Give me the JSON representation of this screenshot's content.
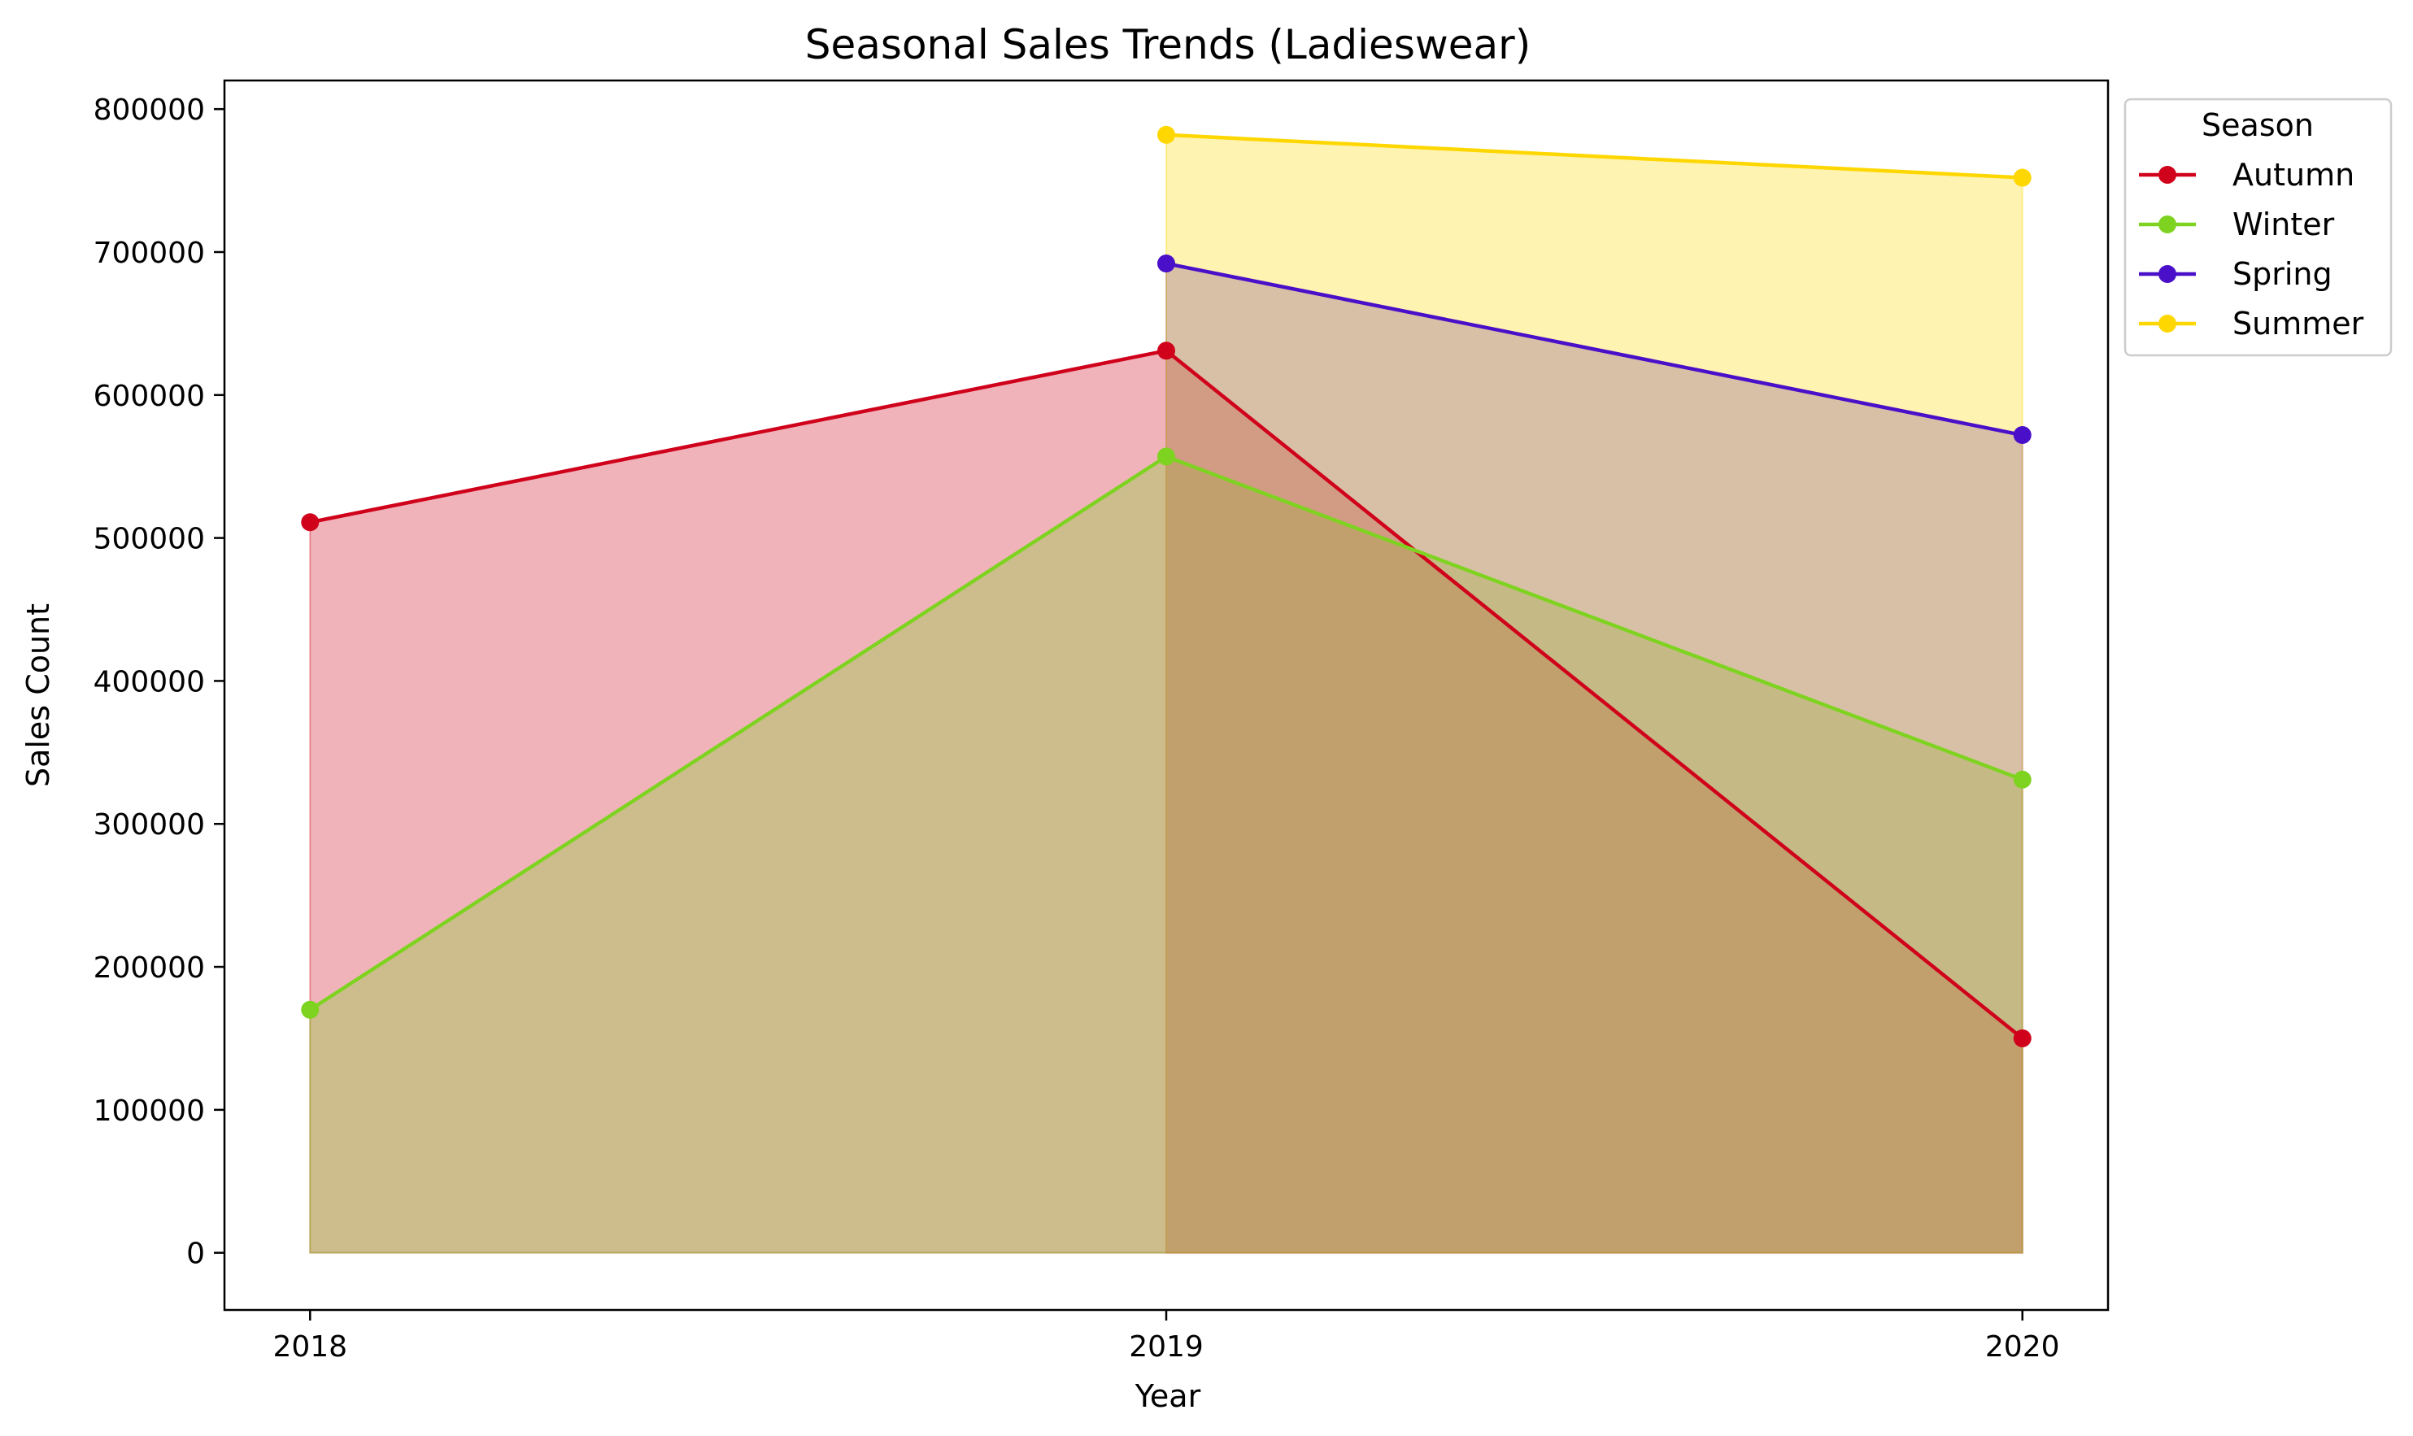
{
  "chart_data": {
    "type": "area",
    "title": "Seasonal Sales Trends (Ladieswear)",
    "xlabel": "Year",
    "ylabel": "Sales Count",
    "x": [
      2018,
      2019,
      2020
    ],
    "x_tick_labels": [
      "2018",
      "2019",
      "2020"
    ],
    "ylim": [
      -40000,
      820000
    ],
    "y_ticks": [
      0,
      100000,
      200000,
      300000,
      400000,
      500000,
      600000,
      700000,
      800000
    ],
    "y_tick_labels": [
      "0",
      "100000",
      "200000",
      "300000",
      "400000",
      "500000",
      "600000",
      "700000",
      "800000"
    ],
    "grid": false,
    "legend": {
      "title": "Season",
      "placement": "outside-top-right"
    },
    "series": [
      {
        "name": "Autumn",
        "color": "#d0021b",
        "fill_opacity": 0.3,
        "values": [
          511000,
          631000,
          150000
        ]
      },
      {
        "name": "Winter",
        "color": "#7ed321",
        "fill_opacity": 0.3,
        "values": [
          170000,
          557000,
          331000
        ]
      },
      {
        "name": "Spring",
        "color": "#4a0fc8",
        "fill_opacity": 0.3,
        "values": [
          null,
          692000,
          572000
        ]
      },
      {
        "name": "Summer",
        "color": "#ffd700",
        "fill_opacity": 0.3,
        "values": [
          null,
          782000,
          752000
        ]
      }
    ]
  }
}
